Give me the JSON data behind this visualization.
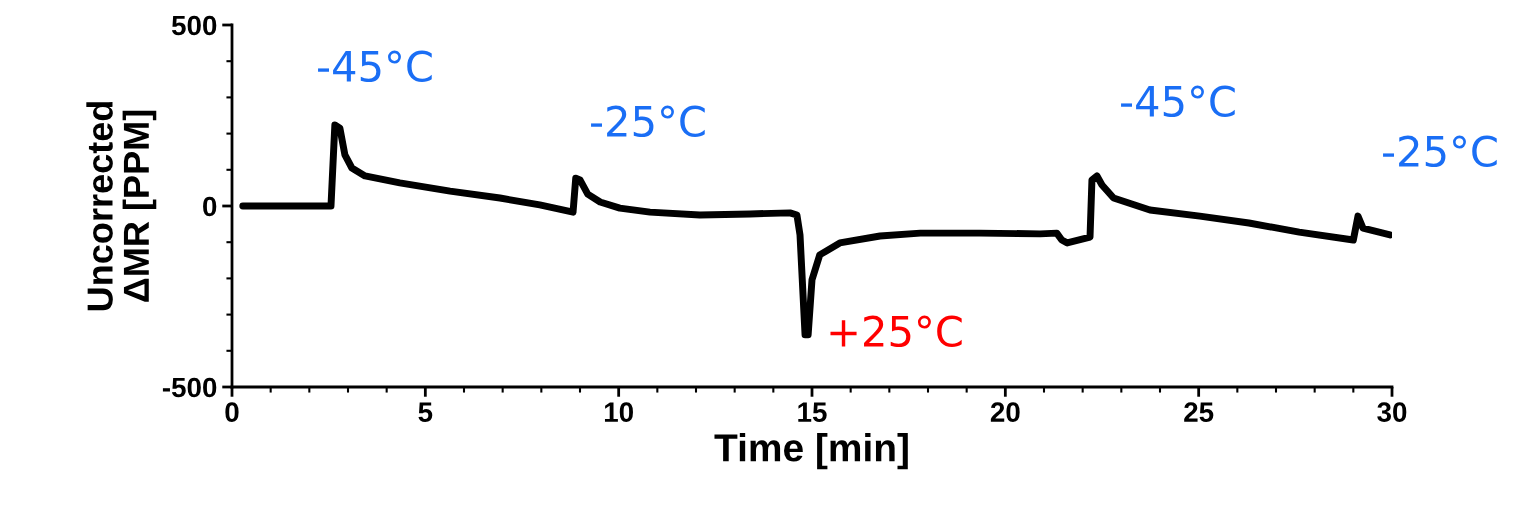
{
  "chart_data": {
    "type": "line",
    "xlabel": "Time [min]",
    "ylabel": "Uncorrected\nΔMR [PPM]",
    "xlim": [
      0,
      30
    ],
    "xticks": [
      0,
      5,
      10,
      15,
      20,
      25,
      30
    ],
    "ylim": [
      -500,
      500
    ],
    "yticks": [
      -500,
      0,
      500
    ],
    "grid": false,
    "legend": false,
    "marker": "none",
    "line_style": "solid",
    "series": [
      {
        "color": "#000000",
        "x": [
          0.28,
          2.56,
          2.66,
          2.79,
          2.92,
          3.1,
          3.44,
          4.34,
          5.64,
          6.93,
          7.96,
          8.82,
          8.89,
          9.0,
          9.2,
          9.52,
          10.03,
          10.81,
          12.1,
          13.4,
          14.43,
          14.61,
          14.69,
          14.82,
          14.9,
          15.0,
          15.2,
          15.72,
          16.76,
          17.8,
          19.34,
          20.9,
          21.33,
          21.46,
          21.6,
          22.19,
          22.24,
          22.37,
          22.5,
          22.8,
          23.74,
          25.03,
          26.3,
          27.6,
          29.0,
          29.12,
          29.25,
          29.95
        ],
        "values": [
          0,
          0,
          224,
          215,
          141,
          105,
          83,
          64,
          41,
          22,
          3,
          -17,
          77,
          72,
          33,
          11,
          -6,
          -17,
          -25,
          -22,
          -19,
          -25,
          -80,
          -356,
          -356,
          -204,
          -135,
          -102,
          -83,
          -75,
          -75,
          -77,
          -75,
          -94,
          -102,
          -86,
          72,
          83,
          58,
          22,
          -11,
          -28,
          -47,
          -72,
          -94,
          -28,
          -61,
          -80
        ]
      }
    ],
    "annotations": [
      "-45°C",
      "-25°C",
      "+25°C",
      "-45°C",
      "-25°C"
    ]
  }
}
